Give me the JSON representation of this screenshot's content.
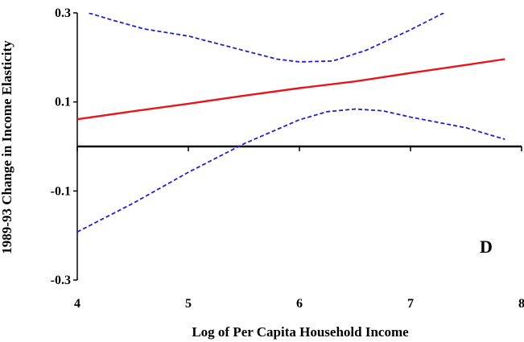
{
  "chart_data": {
    "type": "line",
    "xlabel": "Log of Per Capita Household Income",
    "ylabel": "1989-93 Change in Income Elasticity",
    "xlim": [
      4,
      8
    ],
    "ylim": [
      -0.3,
      0.3
    ],
    "x_ticks": [
      4,
      5,
      6,
      7,
      8
    ],
    "x_tick_labels": [
      "4",
      "5",
      "6",
      "7",
      "8"
    ],
    "y_ticks": [
      0.3,
      0.1,
      -0.1,
      -0.3
    ],
    "y_tick_labels": [
      "0.3",
      "0.1",
      "-0.1",
      "-0.3"
    ],
    "grid": false,
    "legend": "none",
    "zero_line": true,
    "panel_label": "D",
    "series": [
      {
        "role": "estimate",
        "color": "#e8151b",
        "dash": "solid",
        "x": [
          4.0,
          4.5,
          5.0,
          5.5,
          6.0,
          6.5,
          7.0,
          7.5,
          7.85
        ],
        "y": [
          0.061,
          0.079,
          0.096,
          0.114,
          0.131,
          0.146,
          0.165,
          0.183,
          0.196
        ]
      },
      {
        "role": "upper-band",
        "color": "#1f1fd6",
        "dash": "dashed",
        "x": [
          4.0,
          4.1,
          4.3,
          4.6,
          5.0,
          5.4,
          5.8,
          6.0,
          6.3,
          6.6,
          7.0,
          7.3
        ],
        "y": [
          0.312,
          0.3,
          0.285,
          0.264,
          0.248,
          0.222,
          0.196,
          0.19,
          0.192,
          0.216,
          0.262,
          0.3
        ]
      },
      {
        "role": "lower-band",
        "color": "#1f1fd6",
        "dash": "dashed",
        "x": [
          4.0,
          4.5,
          5.0,
          5.5,
          6.0,
          6.25,
          6.5,
          6.75,
          7.0,
          7.5,
          7.85
        ],
        "y": [
          -0.192,
          -0.128,
          -0.058,
          0.006,
          0.06,
          0.078,
          0.084,
          0.08,
          0.066,
          0.042,
          0.016
        ]
      }
    ]
  }
}
